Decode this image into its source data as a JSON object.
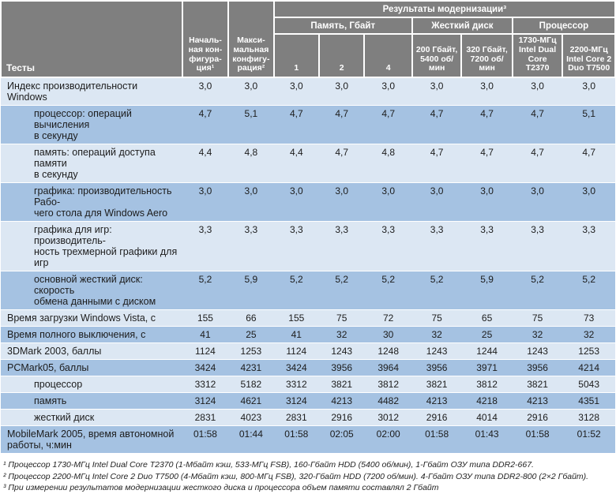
{
  "colors": {
    "header_bg": "#7f7f7f",
    "row_light": "#dce7f3",
    "row_dark": "#a5c2e2"
  },
  "table": {
    "corner": {
      "tests": "Тесты",
      "initial": "Началь-\nная кон-\nфигура-\nция¹",
      "max": "Макси-\nмальная\nконфигу-\nрация²"
    },
    "groups": {
      "results": "Результаты модернизации³",
      "memory": "Память, Гбайт",
      "hdd": "Жесткий диск",
      "cpu": "Процессор"
    },
    "columns": [
      "1",
      "2",
      "4",
      "200 Гбайт,\n5400 об/\nмин",
      "320 Гбайт,\n7200 об/мин",
      "1730-МГц\nIntel Dual\nCore T2370",
      "2200-МГц\nIntel Core 2\nDuo T7500"
    ],
    "rows": [
      {
        "label": "Индекс производительности Windows",
        "indent": false,
        "values": [
          "3,0",
          "3,0",
          "3,0",
          "3,0",
          "3,0",
          "3,0",
          "3,0",
          "3,0",
          "3,0"
        ]
      },
      {
        "label": "процессор: операций вычисления\nв секунду",
        "indent": true,
        "values": [
          "4,7",
          "5,1",
          "4,7",
          "4,7",
          "4,7",
          "4,7",
          "4,7",
          "4,7",
          "5,1"
        ]
      },
      {
        "label": "память: операций доступа памяти\nв секунду",
        "indent": true,
        "values": [
          "4,4",
          "4,8",
          "4,4",
          "4,7",
          "4,8",
          "4,7",
          "4,7",
          "4,7",
          "4,7"
        ]
      },
      {
        "label": "графика: производительность Рабо-\nчего стола для Windows Aero",
        "indent": true,
        "values": [
          "3,0",
          "3,0",
          "3,0",
          "3,0",
          "3,0",
          "3,0",
          "3,0",
          "3,0",
          "3,0"
        ]
      },
      {
        "label": "графика для игр: производитель-\nность трехмерной графики для игр",
        "indent": true,
        "values": [
          "3,3",
          "3,3",
          "3,3",
          "3,3",
          "3,3",
          "3,3",
          "3,3",
          "3,3",
          "3,3"
        ]
      },
      {
        "label": "основной жесткий диск: скорость\nобмена данными с диском",
        "indent": true,
        "values": [
          "5,2",
          "5,9",
          "5,2",
          "5,2",
          "5,2",
          "5,2",
          "5,9",
          "5,2",
          "5,2"
        ]
      },
      {
        "label": "Время загрузки Windows Vista, с",
        "indent": false,
        "values": [
          "155",
          "66",
          "155",
          "75",
          "72",
          "75",
          "65",
          "75",
          "73"
        ]
      },
      {
        "label": "Время полного выключения, с",
        "indent": false,
        "values": [
          "41",
          "25",
          "41",
          "32",
          "30",
          "32",
          "25",
          "32",
          "32"
        ]
      },
      {
        "label": "3DMark 2003, баллы",
        "indent": false,
        "values": [
          "1124",
          "1253",
          "1124",
          "1243",
          "1248",
          "1243",
          "1244",
          "1243",
          "1253"
        ]
      },
      {
        "label": "PCMark05, баллы",
        "indent": false,
        "values": [
          "3424",
          "4231",
          "3424",
          "3956",
          "3964",
          "3956",
          "3971",
          "3956",
          "4214"
        ]
      },
      {
        "label": "процессор",
        "indent": true,
        "values": [
          "3312",
          "5182",
          "3312",
          "3821",
          "3812",
          "3821",
          "3812",
          "3821",
          "5043"
        ]
      },
      {
        "label": "память",
        "indent": true,
        "values": [
          "3124",
          "4621",
          "3124",
          "4213",
          "4482",
          "4213",
          "4218",
          "4213",
          "4351"
        ]
      },
      {
        "label": "жесткий диск",
        "indent": true,
        "values": [
          "2831",
          "4023",
          "2831",
          "2916",
          "3012",
          "2916",
          "4014",
          "2916",
          "3128"
        ]
      },
      {
        "label": "MobileMark 2005, время автономной\nработы, ч:мин",
        "indent": false,
        "values": [
          "01:58",
          "01:44",
          "01:58",
          "02:05",
          "02:00",
          "01:58",
          "01:43",
          "01:58",
          "01:52"
        ]
      }
    ]
  },
  "footnotes": [
    "¹ Процессор 1730-МГц Intel Dual Core T2370 (1-Мбайт кэш, 533-МГц FSB), 160-Гбайт HDD (5400 об/мин), 1-Гбайт ОЗУ типа DDR2-667.",
    "² Процессор 2200-МГц Intel Core 2 Duo T7500 (4-Мбайт кэш, 800-МГц FSB), 320-Гбайт HDD (7200 об/мин). 4-Гбайт ОЗУ типа DDR2-800 (2×2 Гбайт).",
    "³ При измерении результатов модернизации жесткого диска и процессора объем памяти составлял 2 Гбайт"
  ]
}
